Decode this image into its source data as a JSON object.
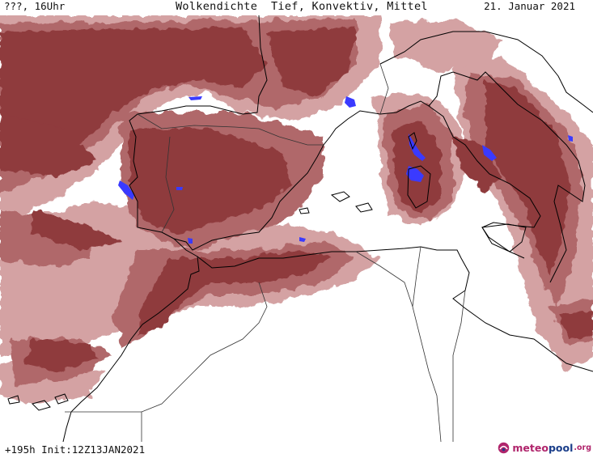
{
  "header": {
    "left": "???, 16Uhr",
    "title": "Wolkendichte  Tief, Konvektiv, Mittel",
    "date": "21. Januar 2021"
  },
  "footer": {
    "run": "+195h Init:12Z13JAN2021"
  },
  "logo": {
    "part1": "meteo",
    "part2": "pool",
    "part3": ".org"
  },
  "colors": {
    "cloud_dark": "#8f3a3d",
    "cloud_mid": "#b0686a",
    "cloud_light": "#d4a2a3",
    "convective": "#3a3aff",
    "coast": "#000000"
  }
}
